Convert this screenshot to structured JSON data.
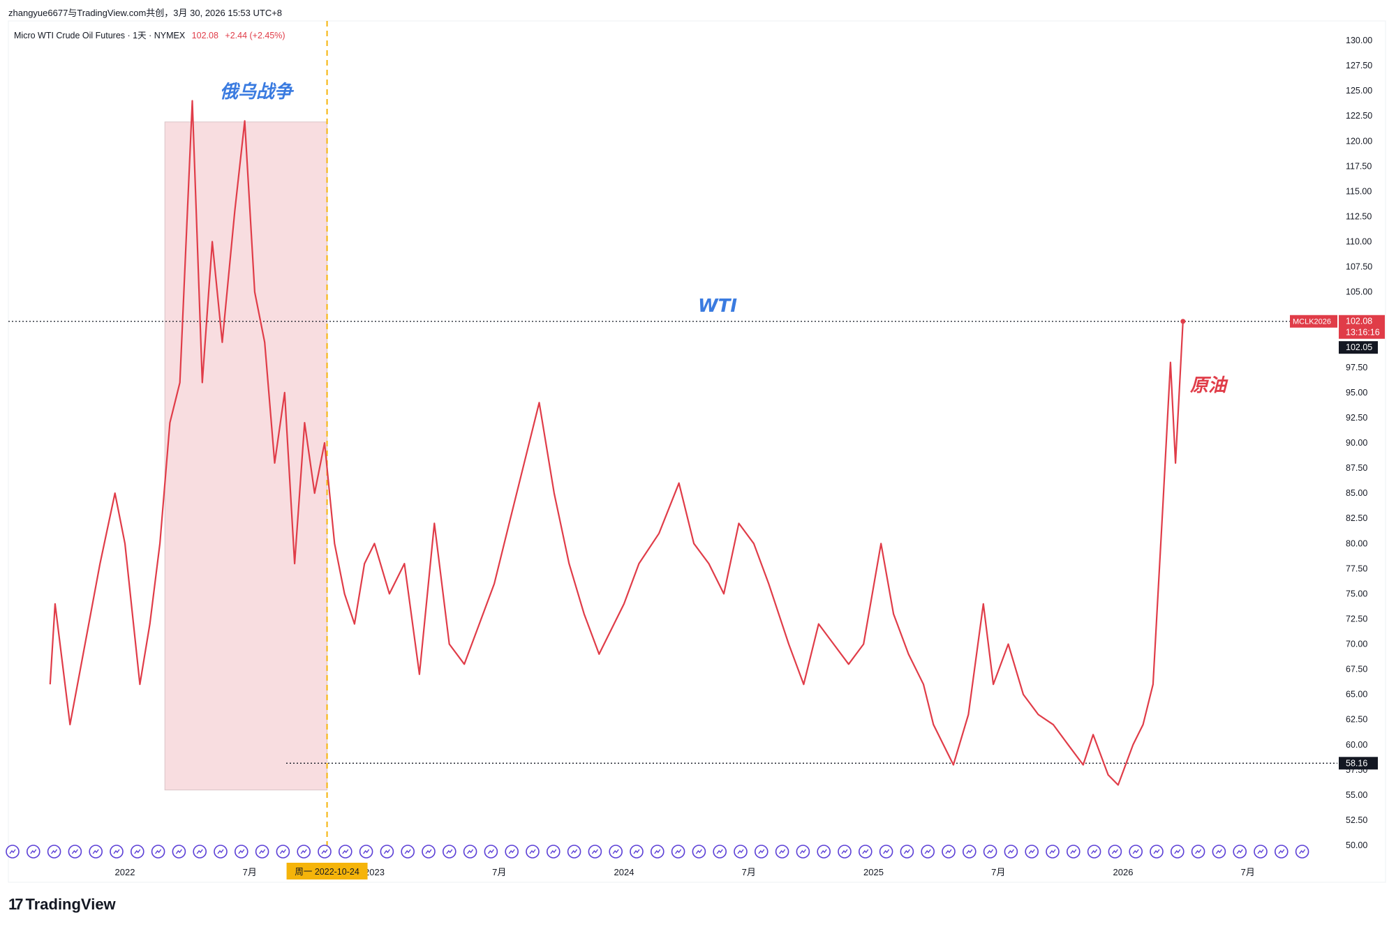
{
  "share_text": "zhangyue6677与TradingView.com共创，3月 30, 2026 15:53 UTC+8",
  "symbol": {
    "name": "Micro WTI Crude Oil Futures · 1天 · NYMEX",
    "last": "102.08",
    "change": "+2.44 (+2.45%)"
  },
  "brand": "TradingView",
  "colors": {
    "line": "#e03c48",
    "shade": "#f8dde0",
    "accent_text": "#3a7be0",
    "crosshair_label": "#f5b40a"
  },
  "chart_data": {
    "type": "line",
    "title": "",
    "ylim": [
      50,
      130
    ],
    "y_ticks": [
      "130.00",
      "127.50",
      "125.00",
      "122.50",
      "120.00",
      "117.50",
      "115.00",
      "112.50",
      "110.00",
      "107.50",
      "105.00",
      "97.50",
      "95.00",
      "92.50",
      "90.00",
      "87.50",
      "85.00",
      "82.50",
      "80.00",
      "77.50",
      "75.00",
      "72.50",
      "70.00",
      "67.50",
      "65.00",
      "62.50",
      "60.00",
      "57.50",
      "55.00",
      "52.50",
      "50.00"
    ],
    "x_ticks": [
      "2022",
      "7月",
      "2023",
      "7月",
      "2024",
      "7月",
      "2025",
      "7月",
      "2026",
      "7月"
    ],
    "series": [
      {
        "values": [
          [
            2021.7,
            66
          ],
          [
            2021.72,
            74
          ],
          [
            2021.78,
            62
          ],
          [
            2021.84,
            70
          ],
          [
            2021.9,
            78
          ],
          [
            2021.96,
            85
          ],
          [
            2022.0,
            80
          ],
          [
            2022.06,
            66
          ],
          [
            2022.1,
            72
          ],
          [
            2022.14,
            80
          ],
          [
            2022.18,
            92
          ],
          [
            2022.22,
            96
          ],
          [
            2022.27,
            124
          ],
          [
            2022.31,
            96
          ],
          [
            2022.35,
            110
          ],
          [
            2022.39,
            100
          ],
          [
            2022.44,
            113
          ],
          [
            2022.48,
            122
          ],
          [
            2022.52,
            105
          ],
          [
            2022.56,
            100
          ],
          [
            2022.6,
            88
          ],
          [
            2022.64,
            95
          ],
          [
            2022.68,
            78
          ],
          [
            2022.72,
            92
          ],
          [
            2022.76,
            85
          ],
          [
            2022.8,
            90
          ],
          [
            2022.84,
            80
          ],
          [
            2022.88,
            75
          ],
          [
            2022.92,
            72
          ],
          [
            2022.96,
            78
          ],
          [
            2023.0,
            80
          ],
          [
            2023.06,
            75
          ],
          [
            2023.12,
            78
          ],
          [
            2023.18,
            67
          ],
          [
            2023.24,
            82
          ],
          [
            2023.3,
            70
          ],
          [
            2023.36,
            68
          ],
          [
            2023.42,
            72
          ],
          [
            2023.48,
            76
          ],
          [
            2023.54,
            82
          ],
          [
            2023.6,
            88
          ],
          [
            2023.66,
            94
          ],
          [
            2023.72,
            85
          ],
          [
            2023.78,
            78
          ],
          [
            2023.84,
            73
          ],
          [
            2023.9,
            69
          ],
          [
            2023.96,
            72
          ],
          [
            2024.0,
            74
          ],
          [
            2024.06,
            78
          ],
          [
            2024.14,
            81
          ],
          [
            2024.22,
            86
          ],
          [
            2024.28,
            80
          ],
          [
            2024.34,
            78
          ],
          [
            2024.4,
            75
          ],
          [
            2024.46,
            82
          ],
          [
            2024.52,
            80
          ],
          [
            2024.58,
            76
          ],
          [
            2024.66,
            70
          ],
          [
            2024.72,
            66
          ],
          [
            2024.78,
            72
          ],
          [
            2024.84,
            70
          ],
          [
            2024.9,
            68
          ],
          [
            2024.96,
            70
          ],
          [
            2025.03,
            80
          ],
          [
            2025.08,
            73
          ],
          [
            2025.14,
            69
          ],
          [
            2025.2,
            66
          ],
          [
            2025.24,
            62
          ],
          [
            2025.28,
            60
          ],
          [
            2025.32,
            58
          ],
          [
            2025.38,
            63
          ],
          [
            2025.44,
            74
          ],
          [
            2025.48,
            66
          ],
          [
            2025.54,
            70
          ],
          [
            2025.6,
            65
          ],
          [
            2025.66,
            63
          ],
          [
            2025.72,
            62
          ],
          [
            2025.78,
            60
          ],
          [
            2025.84,
            58
          ],
          [
            2025.88,
            61
          ],
          [
            2025.94,
            57
          ],
          [
            2025.98,
            56
          ],
          [
            2026.04,
            60
          ],
          [
            2026.08,
            62
          ],
          [
            2026.12,
            66
          ],
          [
            2026.16,
            84
          ],
          [
            2026.19,
            98
          ],
          [
            2026.21,
            88
          ],
          [
            2026.24,
            102.08
          ]
        ]
      }
    ],
    "annotations": [
      "俄乌战争",
      "WTI",
      "原油"
    ],
    "highlight_region": {
      "x": [
        2022.16,
        2022.81
      ],
      "y": [
        55.5,
        121.9
      ]
    },
    "price_lines": [
      102.08,
      58.16
    ],
    "price_labels": [
      "MCLK2026",
      "102.08",
      "13:16:16",
      "102.05",
      "58.16"
    ],
    "crosshair_label": "周一 2022-10-24",
    "grid": false
  }
}
